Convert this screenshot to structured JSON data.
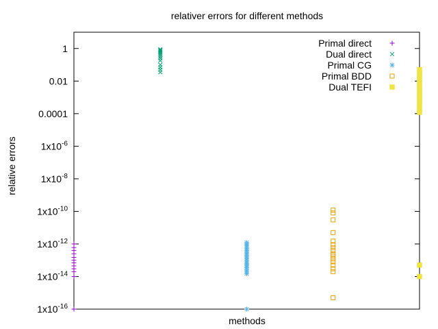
{
  "chart_data": {
    "type": "scatter",
    "title": "relativer errors for different methods",
    "xlabel": "methods",
    "ylabel": "relative errors",
    "yscale": "log",
    "ylim": [
      1e-16,
      10
    ],
    "xlim": [
      0,
      4
    ],
    "grid": false,
    "legend_position": "top-right",
    "ticks": [
      {
        "value": 1,
        "base": "1",
        "exp": ""
      },
      {
        "value": 0.01,
        "base": "0.01",
        "exp": ""
      },
      {
        "value": 0.0001,
        "base": "0.0001",
        "exp": ""
      },
      {
        "value": 1e-06,
        "base": "1x10",
        "exp": "-6"
      },
      {
        "value": 1e-08,
        "base": "1x10",
        "exp": "-8"
      },
      {
        "value": 1e-10,
        "base": "1x10",
        "exp": "-10"
      },
      {
        "value": 1e-12,
        "base": "1x10",
        "exp": "-12"
      },
      {
        "value": 1e-14,
        "base": "1x10",
        "exp": "-14"
      },
      {
        "value": 1e-16,
        "base": "1x10",
        "exp": "-16"
      }
    ],
    "series": [
      {
        "name": "Primal direct",
        "color": "#9400d3",
        "marker": "plus",
        "x": 0,
        "y": [
          1e-12,
          6e-13,
          4e-13,
          2.5e-13,
          1.5e-13,
          1e-13,
          7e-14,
          4.5e-14,
          3e-14,
          2e-14,
          1e-14,
          1e-16
        ]
      },
      {
        "name": "Dual direct",
        "color": "#009e73",
        "marker": "cross",
        "x": 1,
        "y": [
          0.9,
          0.8,
          0.7,
          0.6,
          0.5,
          0.4,
          0.32,
          0.25,
          0.18,
          0.1,
          0.07,
          0.05,
          0.035
        ]
      },
      {
        "name": "Primal CG",
        "color": "#56b4e9",
        "marker": "star",
        "x": 2,
        "y": [
          1.2e-12,
          1e-12,
          8e-13,
          6.5e-13,
          5e-13,
          4e-13,
          3.2e-13,
          2.5e-13,
          2e-13,
          1.6e-13,
          1.3e-13,
          1e-13,
          8e-14,
          6e-14,
          4.5e-14,
          3.5e-14,
          2.5e-14,
          2e-14,
          1.5e-14,
          1e-16
        ]
      },
      {
        "name": "Primal BDD",
        "color": "#e69f00",
        "marker": "box",
        "x": 3,
        "y": [
          1.2e-10,
          8e-11,
          3e-11,
          5e-12,
          1.5e-12,
          9e-13,
          6e-13,
          4e-13,
          2.5e-13,
          1.8e-13,
          1.2e-13,
          8e-14,
          5e-14,
          3e-14,
          2e-14,
          5e-16
        ]
      },
      {
        "name": "Dual TEFI",
        "color": "#f0e442",
        "marker": "filledbox",
        "x": 4,
        "y": [
          0.05,
          0.03,
          0.02,
          0.012,
          0.008,
          0.005,
          0.003,
          0.002,
          0.0012,
          0.0008,
          0.0005,
          0.0003,
          0.00018,
          0.00012,
          5e-14,
          1e-14
        ]
      }
    ]
  }
}
